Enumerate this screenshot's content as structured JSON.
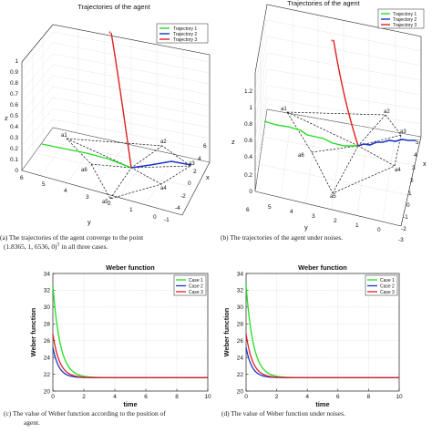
{
  "captions": {
    "a_line1": "(a) The trajectories of the agent converge to the point",
    "a_line2": "(1.8365, 1, 6536, 0)",
    "a_line2_sup": "T",
    "a_line2_tail": " in all three cases.",
    "b": "(b) The trajectories of the agent under noises.",
    "c_line1": "(c) The value of Weber function according to the position of",
    "c_line2": "agent.",
    "d": "(d) The value of Weber function under noises."
  },
  "panel_a": {
    "title": "Trajectories of the agent",
    "legend": [
      "Trajectory 1",
      "Trajectory 2",
      "Trajectory 3"
    ],
    "z_label": "z",
    "y_label": "y",
    "x_label": "x",
    "z_ticks": [
      "0",
      "0.1",
      "0.2",
      "0.3",
      "0.4",
      "0.5",
      "0.6",
      "0.7",
      "0.8",
      "0.9",
      "1"
    ],
    "y_ticks": [
      "6",
      "5",
      "4",
      "3",
      "2",
      "1",
      "0"
    ],
    "x_ticks": [
      "6",
      "4",
      "2",
      "0",
      "-2",
      "-4",
      "-1"
    ],
    "point_labels": [
      "a1",
      "a2",
      "a3",
      "a4",
      "a5",
      "a6"
    ]
  },
  "panel_b": {
    "title": "Trajectories of the agent",
    "legend": [
      "Trajectory 1",
      "Trajectory 2",
      "Trajectory 3"
    ],
    "z_label": "z",
    "y_label": "y",
    "x_label": "x",
    "z_ticks": [
      "0",
      "0.2",
      "0.4",
      "0.6",
      "0.8",
      "1",
      "1.2"
    ],
    "y_ticks": [
      "6",
      "5",
      "4",
      "3",
      "2",
      "1",
      "0"
    ],
    "x_ticks": [
      "5",
      "4",
      "3",
      "2",
      "1",
      "0",
      "-1",
      "-2",
      "-3"
    ],
    "point_labels": [
      "a1",
      "a2",
      "a3",
      "a4",
      "a5",
      "a6"
    ]
  },
  "colors": {
    "case1": "#22dd22",
    "case2": "#1a33cc",
    "case3": "#e02020"
  },
  "chart_data": [
    {
      "type": "line",
      "id": "c",
      "title": "Weber function",
      "xlabel": "time",
      "ylabel": "Weber function",
      "xlim": [
        0,
        10
      ],
      "ylim": [
        20,
        34
      ],
      "xticks": [
        0,
        2,
        4,
        6,
        8,
        10
      ],
      "yticks": [
        20,
        22,
        24,
        26,
        28,
        30,
        32,
        34
      ],
      "grid": true,
      "legend_position": "top-right",
      "series": [
        {
          "name": "Case 1",
          "color": "#22dd22",
          "start": 32.6,
          "end": 21.6,
          "rate": 2.1
        },
        {
          "name": "Case 2",
          "color": "#1a33cc",
          "start": 25.2,
          "end": 21.6,
          "rate": 2.6
        },
        {
          "name": "Case 3",
          "color": "#e02020",
          "start": 26.8,
          "end": 21.6,
          "rate": 2.3
        }
      ]
    },
    {
      "type": "line",
      "id": "d",
      "title": "Weber function",
      "xlabel": "time",
      "ylabel": "Weber function",
      "xlim": [
        0,
        10
      ],
      "ylim": [
        20,
        34
      ],
      "xticks": [
        0,
        2,
        4,
        6,
        8,
        10
      ],
      "yticks": [
        20,
        22,
        24,
        26,
        28,
        30,
        32,
        34
      ],
      "grid": true,
      "legend_position": "top-right",
      "series": [
        {
          "name": "Case 1",
          "color": "#22dd22",
          "start": 32.6,
          "end": 21.6,
          "rate": 2.1
        },
        {
          "name": "Case 2",
          "color": "#1a33cc",
          "start": 25.2,
          "end": 21.6,
          "rate": 2.6
        },
        {
          "name": "Case 3",
          "color": "#e02020",
          "start": 26.8,
          "end": 21.6,
          "rate": 2.3
        }
      ]
    }
  ]
}
